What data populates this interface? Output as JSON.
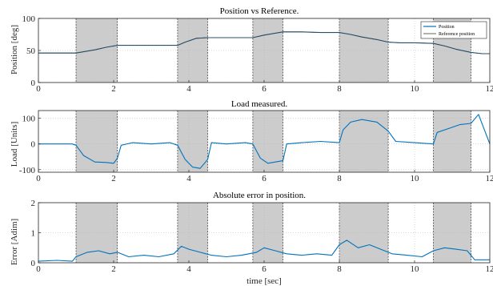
{
  "chart_data": [
    {
      "type": "line",
      "title": "Position vs Reference.",
      "xlabel": "",
      "ylabel": "Position [deg]",
      "xlim": [
        0,
        12
      ],
      "ylim": [
        0,
        100
      ],
      "xticks": [
        0,
        2,
        4,
        6,
        8,
        10,
        12
      ],
      "yticks": [
        0,
        50,
        100
      ],
      "grid": true,
      "legend": {
        "placement": "top-right",
        "entries": [
          "Position",
          "Reference position"
        ]
      },
      "shaded_intervals": [
        [
          1.0,
          2.1
        ],
        [
          3.7,
          4.5
        ],
        [
          5.7,
          6.5
        ],
        [
          8.0,
          9.3
        ],
        [
          10.5,
          11.5
        ]
      ],
      "series": [
        {
          "name": "Position",
          "color": "#0072bd",
          "x": [
            0,
            0.5,
            1.0,
            1.2,
            1.5,
            1.8,
            2.1,
            2.5,
            3.0,
            3.5,
            3.7,
            3.9,
            4.2,
            4.5,
            5.0,
            5.7,
            6.0,
            6.3,
            6.5,
            7.0,
            7.5,
            8.0,
            8.3,
            8.6,
            9.0,
            9.3,
            9.6,
            10.0,
            10.5,
            10.8,
            11.1,
            11.5,
            11.8,
            12.0
          ],
          "y": [
            46,
            46,
            46,
            48,
            51,
            55,
            58,
            58,
            58,
            58,
            58,
            63,
            69,
            70,
            70,
            70,
            74,
            77,
            79,
            79,
            78,
            78,
            75,
            71,
            67,
            63,
            62,
            62,
            61,
            57,
            52,
            47,
            45,
            45
          ]
        },
        {
          "name": "Reference position",
          "color": "#404040",
          "x": [
            0,
            0.5,
            1.0,
            1.2,
            1.5,
            1.8,
            2.1,
            2.5,
            3.0,
            3.5,
            3.7,
            3.9,
            4.2,
            4.5,
            5.0,
            5.7,
            6.0,
            6.3,
            6.5,
            7.0,
            7.5,
            8.0,
            8.3,
            8.6,
            9.0,
            9.3,
            9.6,
            10.0,
            10.5,
            10.8,
            11.1,
            11.5,
            11.8,
            12.0
          ],
          "y": [
            46,
            46,
            46,
            48,
            51,
            55,
            58,
            58,
            58,
            58,
            58,
            63,
            69,
            70,
            70,
            70,
            74,
            77,
            79,
            79,
            78,
            78,
            75,
            71,
            67,
            63,
            62,
            62,
            61,
            57,
            52,
            47,
            45,
            45
          ]
        }
      ]
    },
    {
      "type": "line",
      "title": "Load measured.",
      "xlabel": "",
      "ylabel": "Load [Units]",
      "xlim": [
        0,
        12
      ],
      "ylim": [
        -110,
        130
      ],
      "xticks": [
        0,
        2,
        4,
        6,
        8,
        10,
        12
      ],
      "yticks": [
        -100,
        0,
        100
      ],
      "grid": true,
      "shaded_intervals": [
        [
          1.0,
          2.1
        ],
        [
          3.7,
          4.5
        ],
        [
          5.7,
          6.5
        ],
        [
          8.0,
          9.3
        ],
        [
          10.5,
          11.5
        ]
      ],
      "series": [
        {
          "name": "",
          "color": "#0072bd",
          "x": [
            0,
            0.9,
            1.0,
            1.2,
            1.5,
            1.8,
            2.0,
            2.1,
            2.2,
            2.5,
            3.0,
            3.5,
            3.7,
            3.9,
            4.1,
            4.3,
            4.5,
            4.6,
            5.0,
            5.5,
            5.7,
            5.9,
            6.1,
            6.3,
            6.5,
            6.6,
            7.0,
            7.5,
            8.0,
            8.1,
            8.3,
            8.6,
            9.0,
            9.3,
            9.5,
            10.0,
            10.5,
            10.6,
            10.9,
            11.2,
            11.5,
            11.7,
            12.0
          ],
          "y": [
            0,
            0,
            -5,
            -45,
            -70,
            -72,
            -75,
            -55,
            -5,
            5,
            0,
            5,
            -5,
            -60,
            -90,
            -95,
            -60,
            5,
            0,
            5,
            0,
            -55,
            -75,
            -70,
            -65,
            0,
            5,
            10,
            5,
            55,
            85,
            95,
            85,
            50,
            10,
            5,
            0,
            45,
            60,
            75,
            80,
            115,
            0
          ]
        }
      ]
    },
    {
      "type": "line",
      "title": "Absolute error in position.",
      "xlabel": "time [sec]",
      "ylabel": "Error [Adim]",
      "xlim": [
        0,
        12
      ],
      "ylim": [
        0,
        2
      ],
      "xticks": [
        0,
        2,
        4,
        6,
        8,
        10,
        12
      ],
      "yticks": [
        0,
        1,
        2
      ],
      "grid": true,
      "shaded_intervals": [
        [
          1.0,
          2.1
        ],
        [
          3.7,
          4.5
        ],
        [
          5.7,
          6.5
        ],
        [
          8.0,
          9.3
        ],
        [
          10.5,
          11.5
        ]
      ],
      "series": [
        {
          "name": "",
          "color": "#0072bd",
          "x": [
            0,
            0.5,
            0.9,
            1.0,
            1.3,
            1.6,
            1.9,
            2.1,
            2.4,
            2.8,
            3.2,
            3.6,
            3.8,
            4.0,
            4.3,
            4.6,
            5.0,
            5.4,
            5.8,
            6.0,
            6.3,
            6.6,
            7.0,
            7.4,
            7.8,
            8.0,
            8.2,
            8.5,
            8.8,
            9.1,
            9.4,
            9.8,
            10.2,
            10.5,
            10.8,
            11.1,
            11.4,
            11.6,
            12.0
          ],
          "y": [
            0.05,
            0.08,
            0.05,
            0.2,
            0.35,
            0.4,
            0.3,
            0.35,
            0.2,
            0.25,
            0.2,
            0.3,
            0.55,
            0.45,
            0.35,
            0.25,
            0.2,
            0.25,
            0.35,
            0.5,
            0.4,
            0.3,
            0.25,
            0.3,
            0.25,
            0.6,
            0.75,
            0.5,
            0.6,
            0.45,
            0.3,
            0.25,
            0.2,
            0.4,
            0.5,
            0.45,
            0.4,
            0.1,
            0.1
          ]
        }
      ]
    }
  ]
}
